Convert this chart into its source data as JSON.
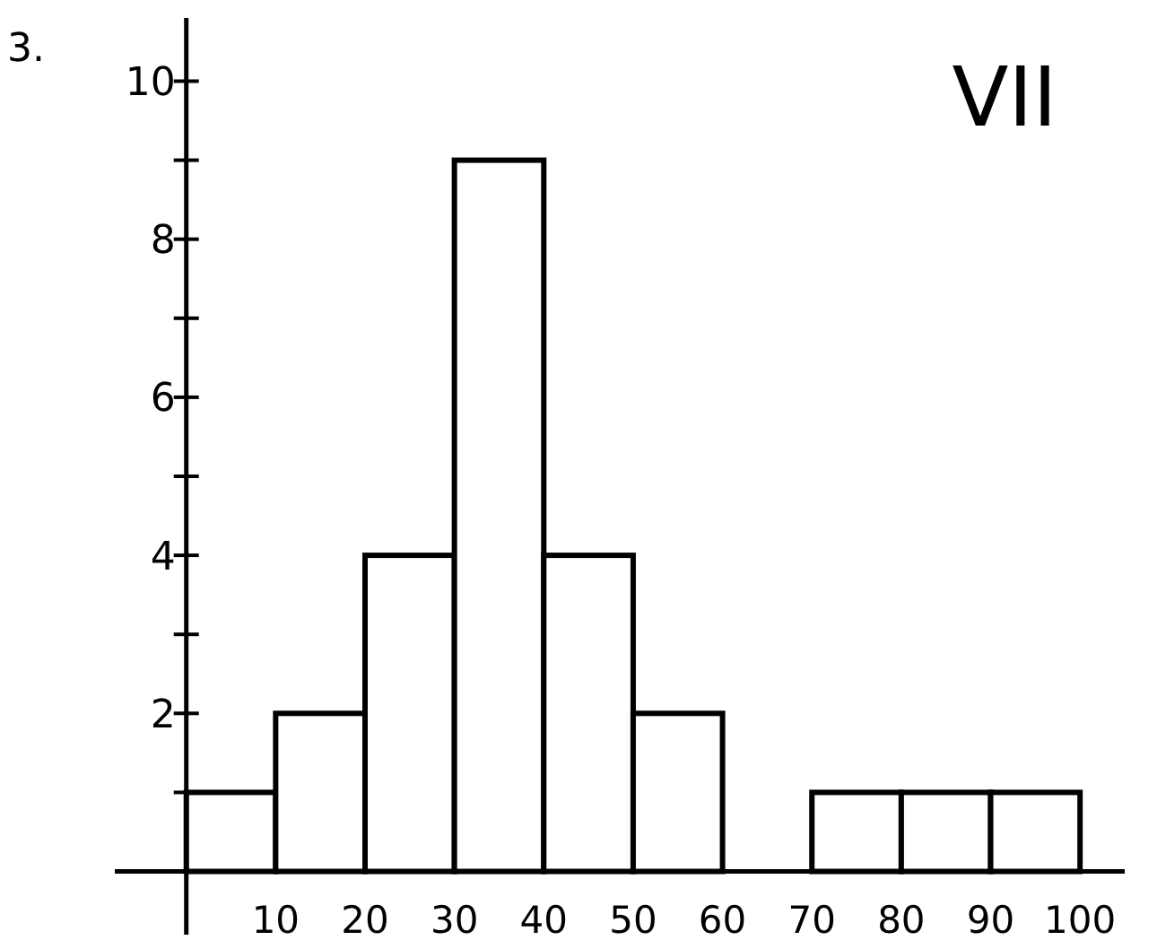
{
  "chart_data": {
    "type": "histogram",
    "title": "VII",
    "annotations": [
      "3."
    ],
    "bins": [
      0,
      10,
      20,
      30,
      40,
      50,
      60,
      70,
      80,
      90,
      100
    ],
    "values": [
      1,
      2,
      4,
      9,
      4,
      2,
      0,
      1,
      1,
      1
    ],
    "color": "#ffffff",
    "xlim": [
      -8,
      105
    ],
    "ylim": [
      -0.8,
      10.8
    ],
    "xticks": [
      10,
      20,
      30,
      40,
      50,
      60,
      70,
      80,
      90,
      100
    ],
    "yticks": [
      {
        "value": 1,
        "label": null
      },
      2,
      {
        "value": 3,
        "label": null
      },
      4,
      {
        "value": 5,
        "label": null
      },
      6,
      {
        "value": 7,
        "label": null
      },
      8,
      {
        "value": 9,
        "label": null
      },
      10
    ],
    "grid": false
  }
}
